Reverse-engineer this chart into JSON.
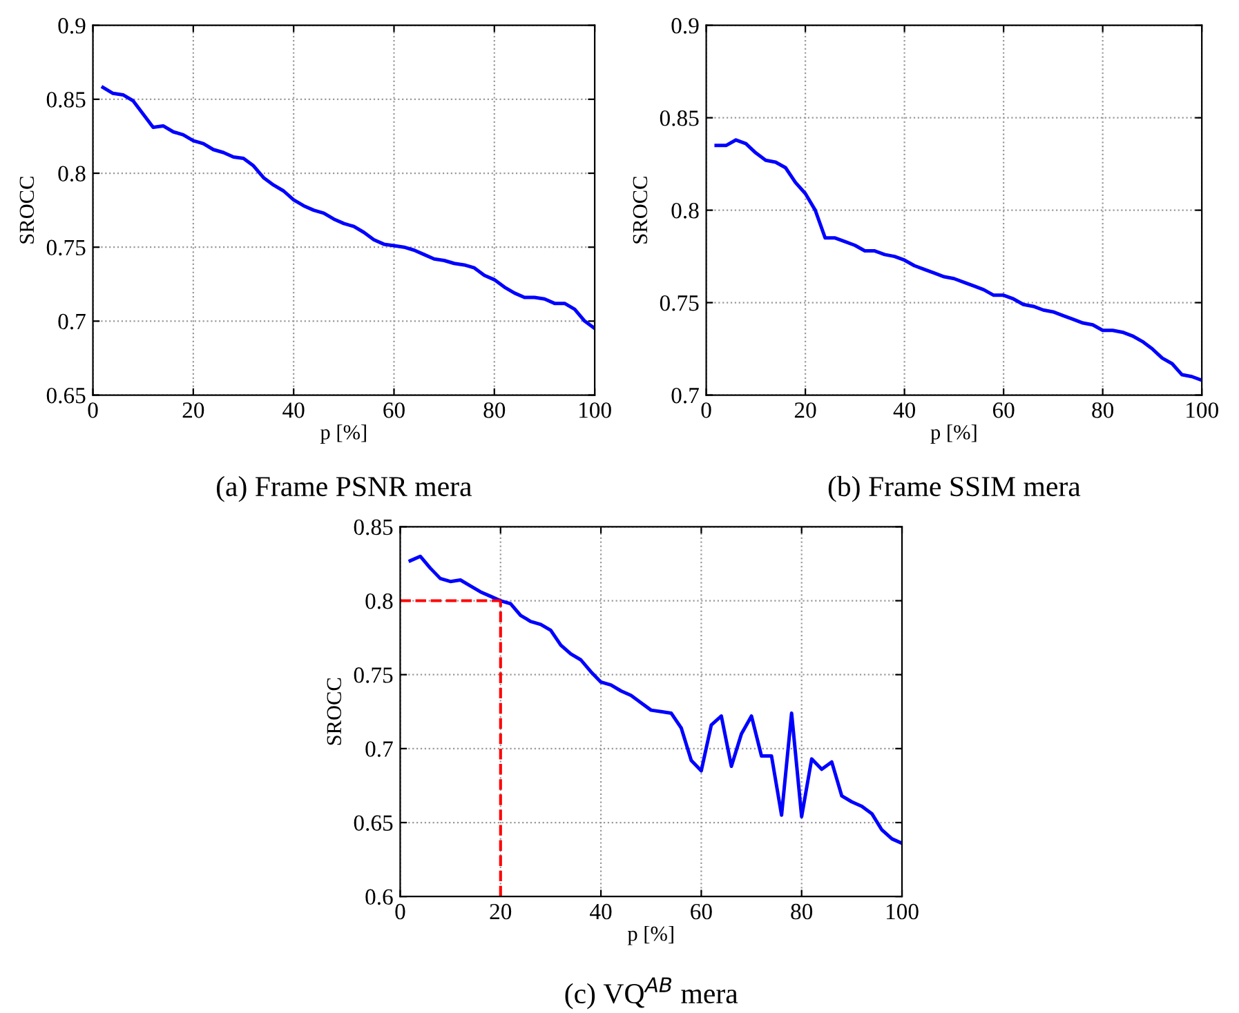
{
  "chart_data": [
    {
      "type": "line",
      "title": "(a) Frame PSNR mera",
      "xlabel": "p [%]",
      "ylabel": "SROCC",
      "x": [
        2,
        4,
        6,
        8,
        10,
        12,
        14,
        16,
        18,
        20,
        22,
        24,
        26,
        28,
        30,
        32,
        34,
        36,
        38,
        40,
        42,
        44,
        46,
        48,
        50,
        52,
        54,
        56,
        58,
        60,
        62,
        64,
        66,
        68,
        70,
        72,
        74,
        76,
        78,
        80,
        82,
        84,
        86,
        88,
        90,
        92,
        94,
        96,
        98,
        100
      ],
      "series": [
        {
          "color": "#0000ff",
          "values": [
            0.858,
            0.854,
            0.853,
            0.849,
            0.84,
            0.831,
            0.832,
            0.828,
            0.826,
            0.822,
            0.82,
            0.816,
            0.814,
            0.811,
            0.81,
            0.805,
            0.797,
            0.792,
            0.788,
            0.782,
            0.778,
            0.775,
            0.773,
            0.769,
            0.766,
            0.764,
            0.76,
            0.755,
            0.752,
            0.751,
            0.75,
            0.748,
            0.745,
            0.742,
            0.741,
            0.739,
            0.738,
            0.736,
            0.731,
            0.728,
            0.723,
            0.719,
            0.716,
            0.716,
            0.715,
            0.712,
            0.712,
            0.708,
            0.7,
            0.695
          ]
        }
      ],
      "xlim": [
        0,
        100
      ],
      "xticks": [
        0,
        20,
        40,
        60,
        80,
        100
      ],
      "ylim": [
        0.65,
        0.9
      ],
      "yticks": [
        0.65,
        0.7,
        0.75,
        0.8,
        0.85,
        0.9
      ],
      "grid": true,
      "line_style": "solid"
    },
    {
      "type": "line",
      "title": "(b) Frame SSIM mera",
      "xlabel": "p [%]",
      "ylabel": "SROCC",
      "x": [
        2,
        4,
        6,
        8,
        10,
        12,
        14,
        16,
        18,
        20,
        22,
        24,
        26,
        28,
        30,
        32,
        34,
        36,
        38,
        40,
        42,
        44,
        46,
        48,
        50,
        52,
        54,
        56,
        58,
        60,
        62,
        64,
        66,
        68,
        70,
        72,
        74,
        76,
        78,
        80,
        82,
        84,
        86,
        88,
        90,
        92,
        94,
        96,
        98,
        100
      ],
      "series": [
        {
          "color": "#0000ff",
          "values": [
            0.835,
            0.835,
            0.838,
            0.836,
            0.831,
            0.827,
            0.826,
            0.823,
            0.815,
            0.809,
            0.8,
            0.785,
            0.785,
            0.783,
            0.781,
            0.778,
            0.778,
            0.776,
            0.775,
            0.773,
            0.77,
            0.768,
            0.766,
            0.764,
            0.763,
            0.761,
            0.759,
            0.757,
            0.754,
            0.754,
            0.752,
            0.749,
            0.748,
            0.746,
            0.745,
            0.743,
            0.741,
            0.739,
            0.738,
            0.735,
            0.735,
            0.734,
            0.732,
            0.729,
            0.725,
            0.72,
            0.717,
            0.711,
            0.71,
            0.708
          ]
        }
      ],
      "xlim": [
        0,
        100
      ],
      "xticks": [
        0,
        20,
        40,
        60,
        80,
        100
      ],
      "ylim": [
        0.7,
        0.9
      ],
      "yticks": [
        0.7,
        0.75,
        0.8,
        0.85,
        0.9
      ],
      "grid": true,
      "line_style": "solid"
    },
    {
      "type": "line",
      "title": "(c) VQ$^{AB}$ mera",
      "xlabel": "p [%]",
      "ylabel": "SROCC",
      "x": [
        2,
        4,
        6,
        8,
        10,
        12,
        14,
        16,
        18,
        20,
        22,
        24,
        26,
        28,
        30,
        32,
        34,
        36,
        38,
        40,
        42,
        44,
        46,
        48,
        50,
        52,
        54,
        56,
        58,
        60,
        62,
        64,
        66,
        68,
        70,
        72,
        74,
        76,
        78,
        80,
        82,
        84,
        86,
        88,
        90,
        92,
        94,
        96,
        98,
        100
      ],
      "series": [
        {
          "color": "#0000ff",
          "values": [
            0.827,
            0.83,
            0.822,
            0.815,
            0.813,
            0.814,
            0.81,
            0.806,
            0.803,
            0.8,
            0.798,
            0.79,
            0.786,
            0.784,
            0.78,
            0.77,
            0.764,
            0.76,
            0.752,
            0.745,
            0.743,
            0.739,
            0.736,
            0.731,
            0.726,
            0.725,
            0.724,
            0.714,
            0.692,
            0.685,
            0.716,
            0.722,
            0.688,
            0.71,
            0.722,
            0.695,
            0.695,
            0.655,
            0.724,
            0.654,
            0.693,
            0.686,
            0.691,
            0.668,
            0.664,
            0.661,
            0.656,
            0.645,
            0.639,
            0.636
          ]
        }
      ],
      "xlim": [
        0,
        100
      ],
      "xticks": [
        0,
        20,
        40,
        60,
        80,
        100
      ],
      "ylim": [
        0.6,
        0.85
      ],
      "yticks": [
        0.6,
        0.65,
        0.7,
        0.75,
        0.8,
        0.85
      ],
      "grid": true,
      "line_style": "solid",
      "ref_lines": [
        {
          "axis": "y",
          "value": 0.8,
          "color": "#ff0000",
          "line_style": "dashed"
        },
        {
          "axis": "x",
          "value": 20,
          "color": "#ff0000",
          "line_style": "dashed"
        }
      ]
    }
  ]
}
